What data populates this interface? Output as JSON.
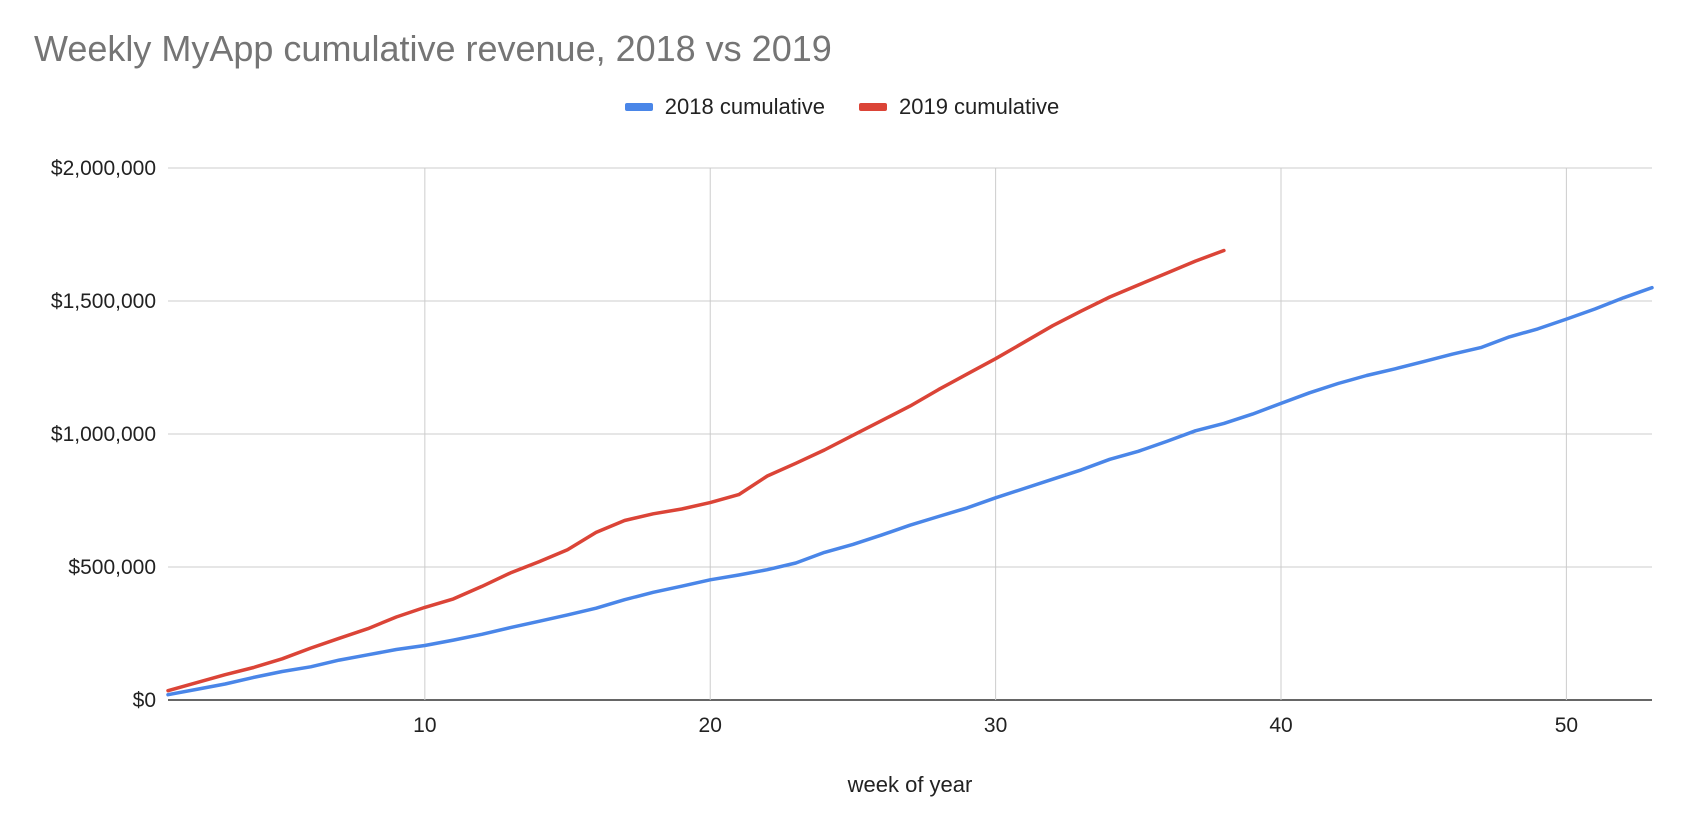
{
  "chart_data": {
    "type": "line",
    "title": "Weekly MyApp cumulative revenue, 2018 vs 2019",
    "xlabel": "week of year",
    "ylabel": "",
    "xlim": [
      1,
      53
    ],
    "ylim": [
      0,
      2000000
    ],
    "grid": true,
    "legend_position": "top",
    "x_ticks": [
      10,
      20,
      30,
      40,
      50
    ],
    "x_tick_labels": [
      "10",
      "20",
      "30",
      "40",
      "50"
    ],
    "y_ticks": [
      0,
      500000,
      1000000,
      1500000,
      2000000
    ],
    "y_tick_labels": [
      "$0",
      "$500,000",
      "$1,000,000",
      "$1,500,000",
      "$2,000,000"
    ],
    "series": [
      {
        "name": "2018 cumulative",
        "color": "#4a86e8",
        "x": [
          1,
          2,
          3,
          4,
          5,
          6,
          7,
          8,
          9,
          10,
          11,
          12,
          13,
          14,
          15,
          16,
          17,
          18,
          19,
          20,
          21,
          22,
          23,
          24,
          25,
          26,
          27,
          28,
          29,
          30,
          31,
          32,
          33,
          34,
          35,
          36,
          37,
          38,
          39,
          40,
          41,
          42,
          43,
          44,
          45,
          46,
          47,
          48,
          49,
          50,
          51,
          52,
          53
        ],
        "values": [
          20000,
          40000,
          60000,
          85000,
          107000,
          125000,
          150000,
          170000,
          190000,
          205000,
          225000,
          247000,
          272000,
          296000,
          320000,
          345000,
          377000,
          405000,
          428000,
          452000,
          470000,
          490000,
          515000,
          555000,
          585000,
          620000,
          657000,
          690000,
          722000,
          760000,
          795000,
          830000,
          865000,
          905000,
          935000,
          972000,
          1012000,
          1040000,
          1075000,
          1115000,
          1155000,
          1190000,
          1220000,
          1245000,
          1272000,
          1300000,
          1325000,
          1365000,
          1395000,
          1432000,
          1470000,
          1512000,
          1550000
        ]
      },
      {
        "name": "2019 cumulative",
        "color": "#db4437",
        "x": [
          1,
          2,
          3,
          4,
          5,
          6,
          7,
          8,
          9,
          10,
          11,
          12,
          13,
          14,
          15,
          16,
          17,
          18,
          19,
          20,
          21,
          22,
          23,
          24,
          25,
          26,
          27,
          28,
          29,
          30,
          31,
          32,
          33,
          34,
          35,
          36,
          37,
          38
        ],
        "values": [
          35000,
          65000,
          95000,
          122000,
          155000,
          195000,
          232000,
          268000,
          312000,
          348000,
          380000,
          427000,
          478000,
          520000,
          565000,
          630000,
          675000,
          700000,
          718000,
          742000,
          772000,
          842000,
          890000,
          940000,
          995000,
          1050000,
          1105000,
          1167000,
          1225000,
          1283000,
          1345000,
          1407000,
          1462000,
          1515000,
          1560000,
          1605000,
          1650000,
          1690000
        ]
      }
    ]
  }
}
